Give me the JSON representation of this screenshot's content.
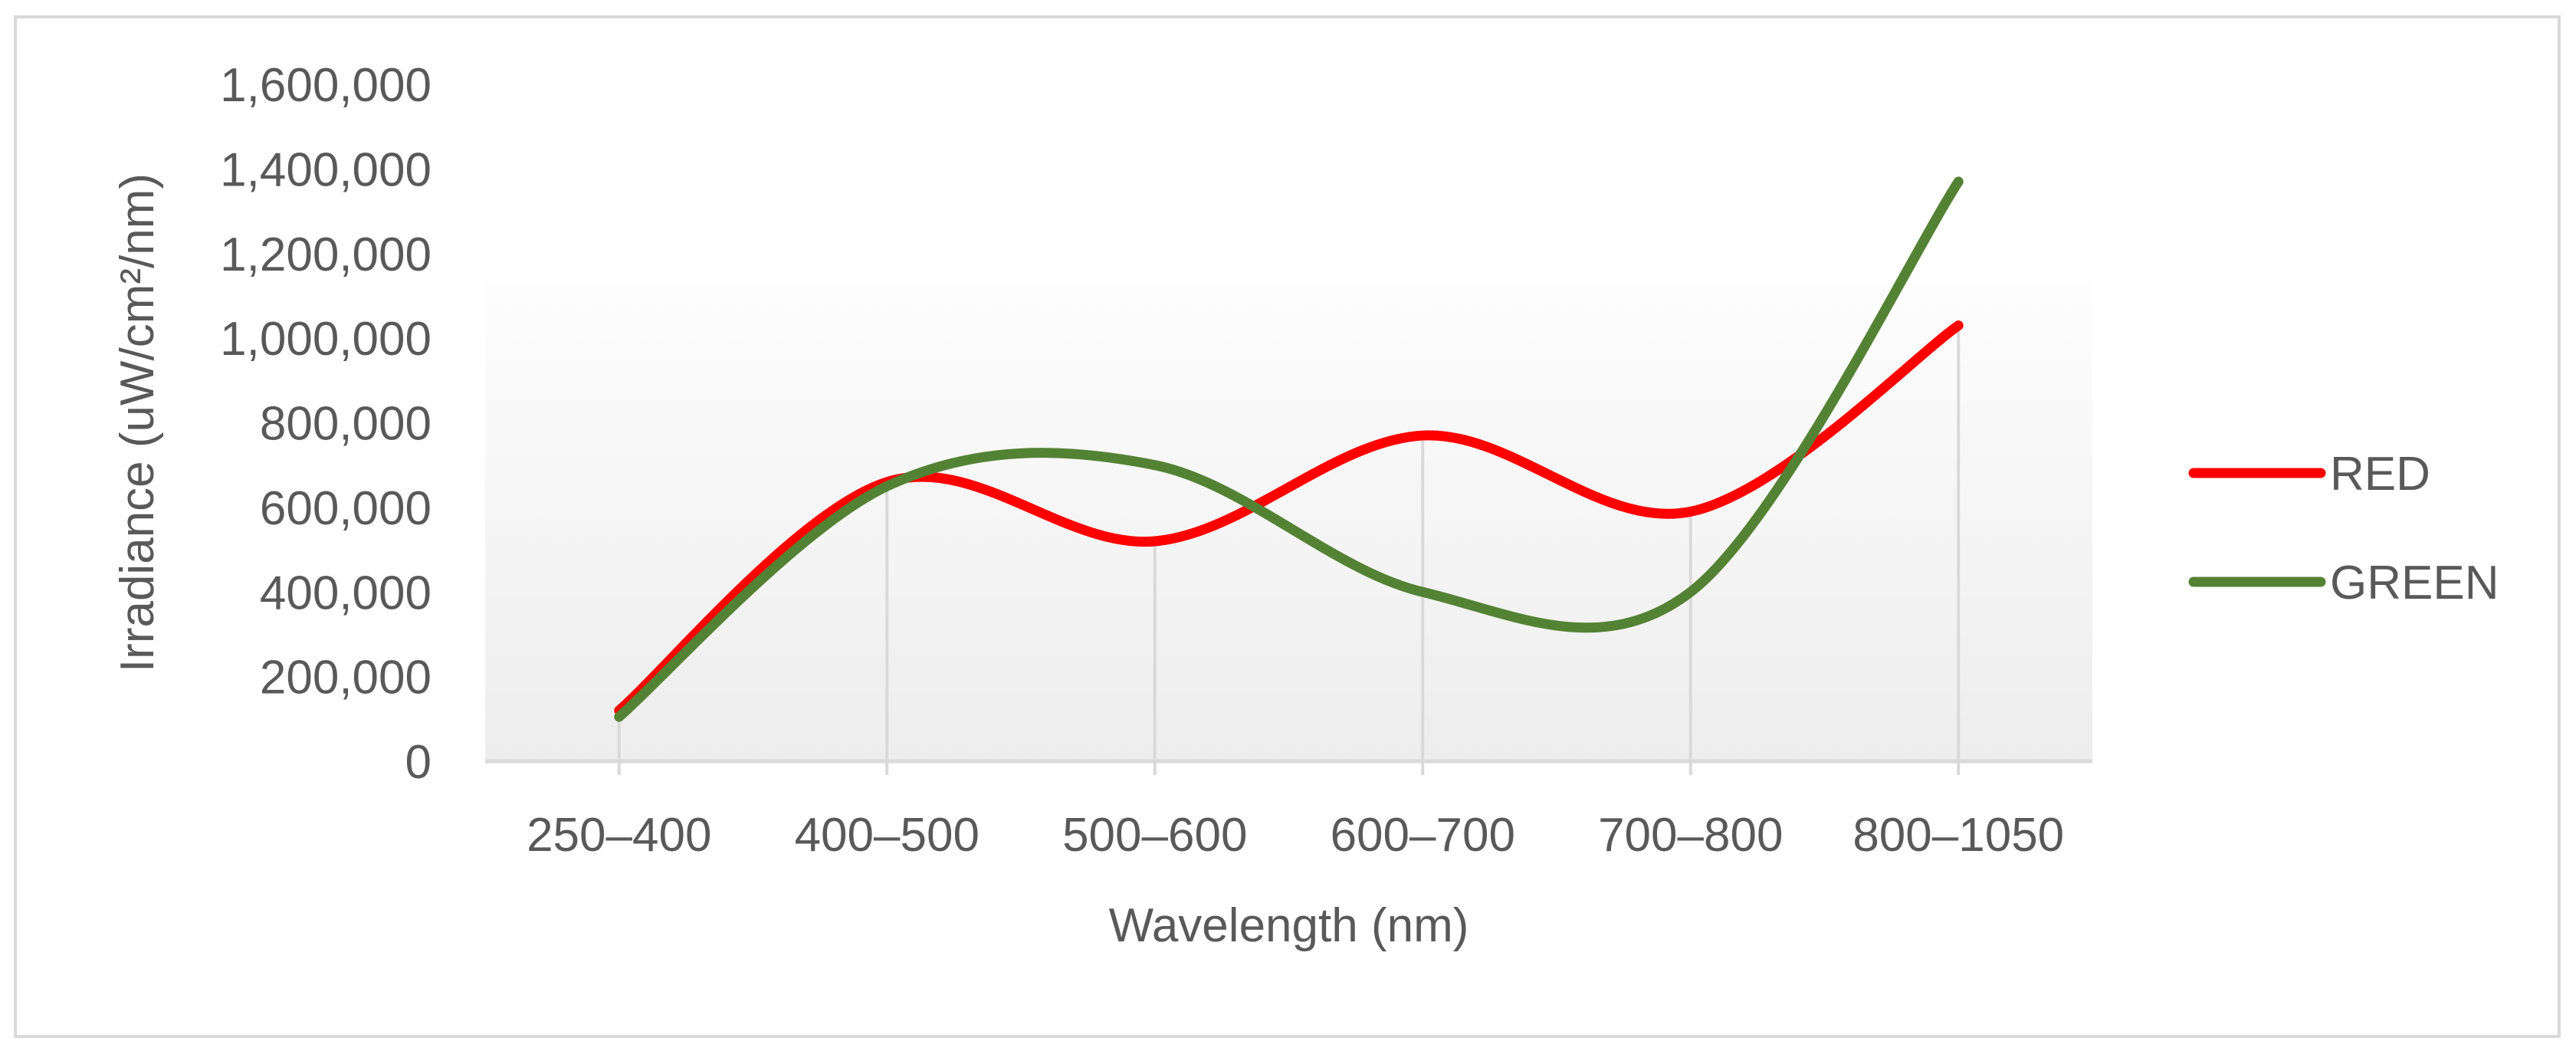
{
  "chart_data": {
    "type": "line",
    "title": "",
    "xlabel": "Wavelength (nm)",
    "ylabel": "Irradiance (uW/cm²/nm)",
    "categories": [
      "250–400",
      "400–500",
      "500–600",
      "600–700",
      "700–800",
      "800–1050"
    ],
    "ylim": [
      0,
      1600000
    ],
    "yticks": [
      0,
      200000,
      400000,
      600000,
      800000,
      1000000,
      1200000,
      1400000,
      1600000
    ],
    "ytick_labels": [
      "0",
      "200,000",
      "400,000",
      "600,000",
      "800,000",
      "1,000,000",
      "1,200,000",
      "1,400,000",
      "1,600,000"
    ],
    "grid": "vertical",
    "smooth": true,
    "legend_position": "right",
    "series": [
      {
        "name": "RED",
        "color": "#ff0000",
        "values": [
          120000,
          660000,
          520000,
          770000,
          590000,
          1030000
        ]
      },
      {
        "name": "GREEN",
        "color": "#548235",
        "values": [
          105000,
          650000,
          700000,
          400000,
          400000,
          1370000
        ]
      }
    ]
  }
}
